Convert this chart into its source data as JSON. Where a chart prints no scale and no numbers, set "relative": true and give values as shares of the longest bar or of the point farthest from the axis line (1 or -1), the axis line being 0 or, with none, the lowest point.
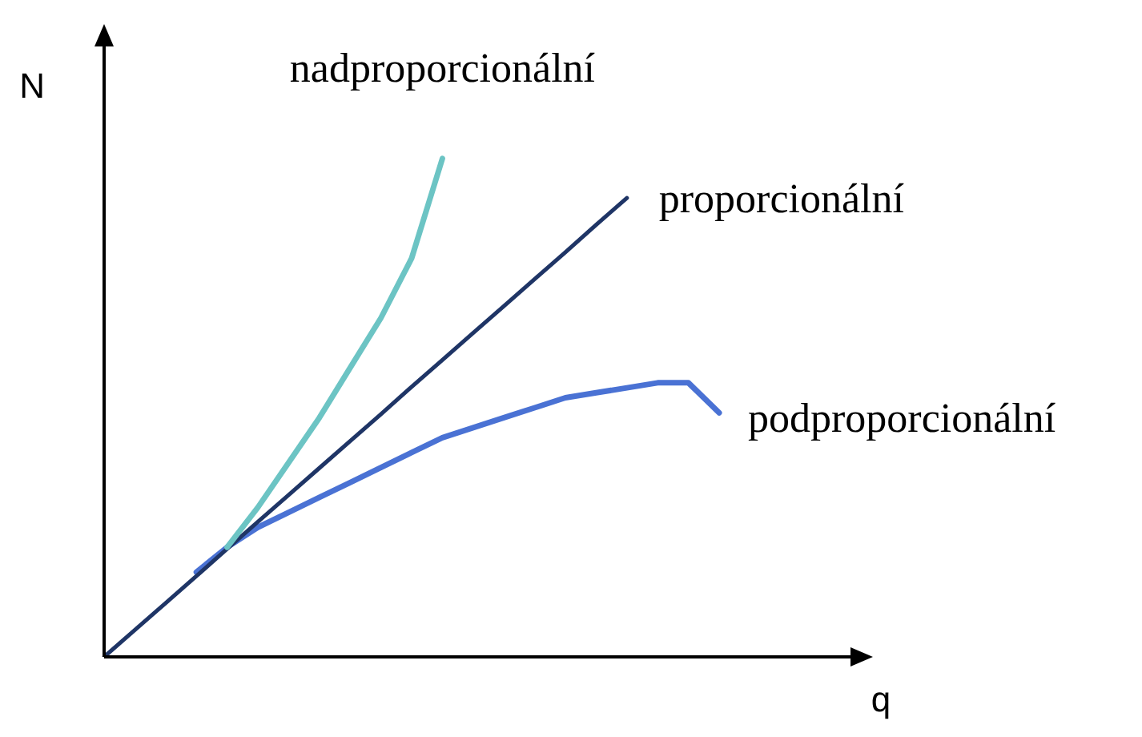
{
  "chart_data": {
    "type": "line",
    "relative": true,
    "xlabel": "q",
    "ylabel": "N",
    "categories": [
      null,
      null,
      null,
      null,
      null,
      null,
      null,
      null,
      null,
      null,
      null,
      null,
      null,
      null,
      null,
      null,
      null,
      null,
      null,
      null,
      null,
      null,
      null,
      null,
      null,
      null
    ],
    "series": [
      {
        "name": "nadproporcionální",
        "color": "#6cc4c4",
        "values": [
          null,
          null,
          null,
          null,
          0.22,
          0.3,
          0.39,
          0.48,
          0.58,
          0.68,
          0.8,
          1.0,
          null,
          null,
          null,
          null,
          null,
          null,
          null,
          null,
          null,
          null,
          null,
          null,
          null,
          null
        ]
      },
      {
        "name": "proporcionální",
        "color": "#1f3566",
        "values": [
          0,
          0.054,
          0.108,
          0.162,
          0.217,
          0.271,
          0.325,
          0.379,
          0.433,
          0.487,
          0.542,
          0.596,
          0.65,
          0.704,
          0.758,
          0.812,
          0.867,
          0.921,
          null,
          null,
          null,
          null,
          null,
          null,
          null,
          null
        ]
      },
      {
        "name": "podproporcionální",
        "color": "#4a72d4",
        "values": [
          null,
          null,
          null,
          0.17,
          0.22,
          0.26,
          0.29,
          0.32,
          0.35,
          0.38,
          0.41,
          0.44,
          0.46,
          0.48,
          0.5,
          0.52,
          0.53,
          0.54,
          0.55,
          0.55,
          0.49,
          null,
          null,
          null,
          null,
          null
        ]
      }
    ]
  }
}
